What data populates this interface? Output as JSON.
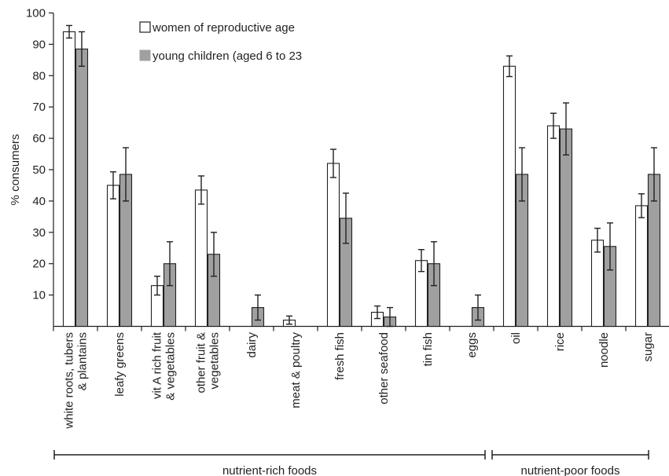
{
  "chart_data": {
    "type": "bar",
    "title": "",
    "xlabel": "",
    "ylabel": "% consumers",
    "ylim": [
      0,
      100
    ],
    "yticks": [
      10,
      20,
      30,
      40,
      50,
      60,
      70,
      80,
      90,
      100
    ],
    "grid": false,
    "legend_position": "top",
    "categories": [
      [
        "white roots, tubers",
        "& plantains"
      ],
      [
        "leafy greens"
      ],
      [
        "vit A rich fruit",
        "& vegetables"
      ],
      [
        "other fruit &",
        "vegetables"
      ],
      [
        "dairy"
      ],
      [
        "meat & poultry"
      ],
      [
        "fresh fish"
      ],
      [
        "other seafood"
      ],
      [
        "tin fish"
      ],
      [
        "eggs"
      ],
      [
        "oil"
      ],
      [
        "rice"
      ],
      [
        "noodle"
      ],
      [
        "sugar"
      ]
    ],
    "series": [
      {
        "name": "women of reproductive age",
        "color": "#ffffff",
        "values": [
          94,
          45,
          13,
          43.5,
          0,
          2,
          52,
          4.5,
          21,
          0,
          83,
          64,
          27.5,
          38.5
        ],
        "error": [
          2,
          4.3,
          3,
          4.5,
          0,
          1.3,
          4.5,
          2,
          3.5,
          0,
          3.3,
          4,
          3.8,
          3.8
        ]
      },
      {
        "name": "young children (aged 6 to 23",
        "color": "#a0a0a0",
        "values": [
          88.5,
          48.5,
          20,
          23,
          6,
          0,
          34.5,
          3,
          20,
          6,
          48.5,
          63,
          25.5,
          48.5
        ],
        "error": [
          5.5,
          8.5,
          7,
          7,
          4,
          0,
          8,
          3,
          7,
          4,
          8.5,
          8.3,
          7.5,
          8.5
        ]
      }
    ],
    "groups": [
      {
        "label": "nutrient-rich foods",
        "from": 0,
        "to": 9
      },
      {
        "label": "nutrient-poor foods",
        "from": 10,
        "to": 13
      }
    ]
  }
}
